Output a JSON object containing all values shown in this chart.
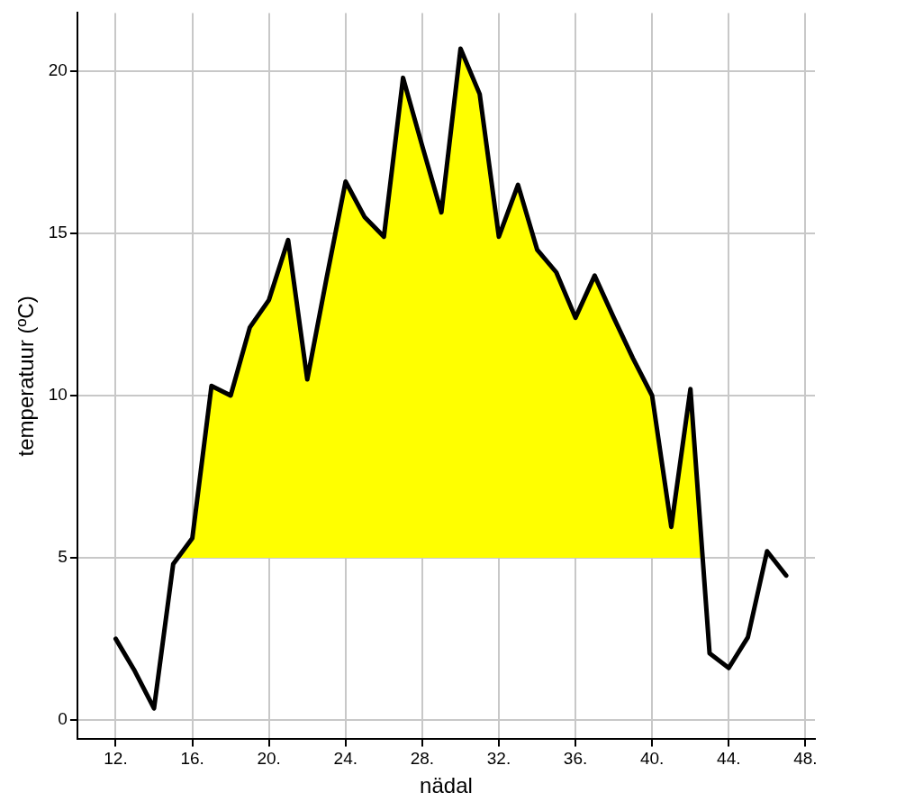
{
  "chart_data": {
    "type": "line",
    "xlabel": "nädal",
    "ylabel": "temperatuur (ºC)",
    "x": [
      12,
      13,
      14,
      15,
      16,
      17,
      18,
      19,
      20,
      21,
      22,
      23,
      24,
      25,
      26,
      27,
      28,
      29,
      30,
      31,
      32,
      33,
      34,
      35,
      36,
      37,
      38,
      39,
      40,
      41,
      42,
      43,
      44,
      45,
      46,
      47
    ],
    "series": [
      {
        "type": "area",
        "color": "#ffff00",
        "x": [
          15.25,
          16,
          17,
          18,
          19,
          20,
          21,
          22,
          23,
          24,
          25,
          26,
          27,
          28,
          29,
          30,
          31,
          32,
          33,
          34,
          35,
          36,
          37,
          38,
          39,
          40,
          41,
          42,
          42.64
        ],
        "values": [
          5,
          5.6,
          10.3,
          10.0,
          12.1,
          12.95,
          14.8,
          10.5,
          13.6,
          16.6,
          15.5,
          14.9,
          19.8,
          17.7,
          15.65,
          20.7,
          19.3,
          14.9,
          16.5,
          14.5,
          13.8,
          12.4,
          13.7,
          12.4,
          11.15,
          10.0,
          5.95,
          10.2,
          5
        ]
      },
      {
        "color": "#000000",
        "values": [
          2.5,
          1.5,
          0.35,
          4.8,
          5.6,
          10.3,
          10.0,
          12.1,
          12.95,
          14.8,
          10.5,
          13.6,
          16.6,
          15.5,
          14.9,
          19.8,
          17.7,
          15.65,
          20.7,
          19.3,
          14.9,
          16.5,
          14.5,
          13.8,
          12.4,
          13.7,
          12.4,
          11.15,
          10.0,
          5.95,
          10.2,
          2.05,
          1.6,
          2.55,
          5.2,
          4.45
        ]
      }
    ],
    "xlim": [
      10,
      48.5
    ],
    "xticks": [
      {
        "value": 12,
        "label": "12."
      },
      {
        "value": 16,
        "label": "16."
      },
      {
        "value": 20,
        "label": "20."
      },
      {
        "value": 24,
        "label": "24."
      },
      {
        "value": 28,
        "label": "28."
      },
      {
        "value": 32,
        "label": "32."
      },
      {
        "value": 36,
        "label": "36."
      },
      {
        "value": 40,
        "label": "40."
      },
      {
        "value": 44,
        "label": "44."
      },
      {
        "value": 48,
        "label": "48."
      }
    ],
    "ylim": [
      -0.6,
      21.8
    ],
    "yticks": [
      0,
      5,
      10,
      15,
      20
    ],
    "grid": true,
    "legend": false,
    "marker": "none",
    "line_style": "solid"
  }
}
